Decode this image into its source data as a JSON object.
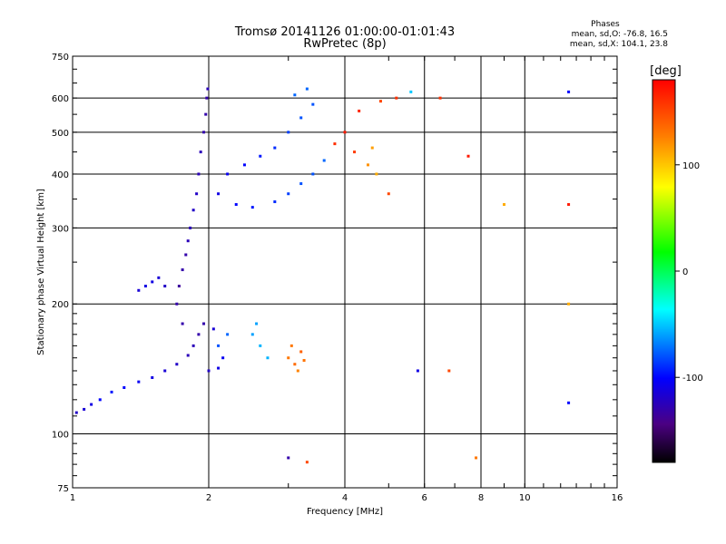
{
  "chart_data": {
    "type": "scatter",
    "title": "Tromsø 20141126 01:00:00-01:01:43",
    "subtitle": "RwPretec (8p)",
    "xlabel": "Frequency [MHz]",
    "ylabel": "Stationary phase Virtual Height [km]",
    "x_scale": "log",
    "y_scale": "log",
    "xlim": [
      1,
      16
    ],
    "ylim": [
      75,
      750
    ],
    "x_ticks": [
      1,
      2,
      4,
      6,
      8,
      10,
      16
    ],
    "y_ticks": [
      75,
      100,
      200,
      300,
      400,
      500,
      600,
      750
    ],
    "x_ticklabels": [
      "1",
      "2",
      "4",
      "6",
      "8",
      "10",
      "16"
    ],
    "y_ticklabels": [
      "75",
      "100",
      "200",
      "300",
      "400",
      "500",
      "600",
      "750"
    ],
    "grid": true,
    "phases": {
      "heading": "Phases",
      "line1": "mean, sd,O: -76.8, 16.5",
      "line2": "mean, sd,X: 104.1, 23.8"
    },
    "colorbar": {
      "label": "[deg]",
      "ticks": [
        100,
        0,
        -100
      ],
      "ticklabels": [
        "100",
        "0",
        "-100"
      ],
      "range": [
        -180,
        180
      ]
    },
    "points": [
      [
        1.02,
        112,
        -120
      ],
      [
        1.06,
        114,
        -115
      ],
      [
        1.1,
        117,
        -110
      ],
      [
        1.15,
        120,
        -100
      ],
      [
        1.22,
        125,
        -95
      ],
      [
        1.3,
        128,
        -100
      ],
      [
        1.4,
        132,
        -105
      ],
      [
        1.5,
        135,
        -110
      ],
      [
        1.6,
        140,
        -115
      ],
      [
        1.7,
        145,
        -120
      ],
      [
        1.8,
        152,
        -125
      ],
      [
        1.85,
        160,
        -125
      ],
      [
        1.9,
        170,
        -130
      ],
      [
        1.95,
        180,
        -130
      ],
      [
        2.0,
        140,
        -120
      ],
      [
        2.1,
        142,
        -110
      ],
      [
        2.15,
        150,
        -105
      ],
      [
        2.05,
        175,
        -115
      ],
      [
        1.75,
        180,
        -130
      ],
      [
        1.7,
        200,
        -130
      ],
      [
        1.72,
        220,
        -135
      ],
      [
        1.75,
        240,
        -130
      ],
      [
        1.78,
        260,
        -130
      ],
      [
        1.8,
        280,
        -125
      ],
      [
        1.82,
        300,
        -125
      ],
      [
        1.85,
        330,
        -120
      ],
      [
        1.88,
        360,
        -120
      ],
      [
        1.9,
        400,
        -125
      ],
      [
        1.92,
        450,
        -125
      ],
      [
        1.95,
        500,
        -130
      ],
      [
        1.97,
        550,
        -130
      ],
      [
        1.98,
        600,
        -130
      ],
      [
        1.99,
        630,
        -125
      ],
      [
        1.6,
        220,
        -120
      ],
      [
        1.55,
        230,
        -115
      ],
      [
        1.5,
        225,
        -110
      ],
      [
        1.45,
        220,
        -110
      ],
      [
        1.4,
        215,
        -115
      ],
      [
        2.1,
        360,
        -110
      ],
      [
        2.3,
        340,
        -100
      ],
      [
        2.5,
        335,
        -95
      ],
      [
        2.8,
        345,
        -90
      ],
      [
        3.0,
        360,
        -85
      ],
      [
        3.2,
        380,
        -80
      ],
      [
        3.4,
        400,
        -80
      ],
      [
        3.6,
        430,
        -75
      ],
      [
        2.2,
        400,
        -105
      ],
      [
        2.4,
        420,
        -100
      ],
      [
        2.6,
        440,
        -95
      ],
      [
        2.8,
        460,
        -90
      ],
      [
        3.0,
        500,
        -85
      ],
      [
        3.2,
        540,
        -80
      ],
      [
        3.4,
        580,
        -80
      ],
      [
        3.1,
        610,
        -75
      ],
      [
        3.3,
        630,
        -75
      ],
      [
        2.5,
        170,
        -60
      ],
      [
        2.6,
        160,
        -55
      ],
      [
        2.7,
        150,
        -55
      ],
      [
        2.55,
        180,
        -60
      ],
      [
        2.2,
        170,
        -75
      ],
      [
        2.1,
        160,
        -80
      ],
      [
        3.0,
        150,
        130
      ],
      [
        3.1,
        145,
        135
      ],
      [
        3.2,
        155,
        140
      ],
      [
        3.05,
        160,
        130
      ],
      [
        3.15,
        140,
        125
      ],
      [
        3.25,
        148,
        132
      ],
      [
        3.8,
        470,
        160
      ],
      [
        4.0,
        500,
        170
      ],
      [
        4.2,
        450,
        155
      ],
      [
        4.5,
        420,
        120
      ],
      [
        4.6,
        460,
        115
      ],
      [
        4.7,
        400,
        110
      ],
      [
        4.3,
        560,
        165
      ],
      [
        4.8,
        590,
        150
      ],
      [
        5.2,
        600,
        160
      ],
      [
        5.6,
        620,
        -50
      ],
      [
        6.5,
        600,
        160
      ],
      [
        7.5,
        440,
        170
      ],
      [
        12.5,
        620,
        -100
      ],
      [
        12.5,
        200,
        110
      ],
      [
        12.5,
        340,
        170
      ],
      [
        12.5,
        118,
        -100
      ],
      [
        5.8,
        140,
        -110
      ],
      [
        6.8,
        140,
        150
      ],
      [
        9.0,
        340,
        110
      ],
      [
        7.8,
        88,
        130
      ],
      [
        3.0,
        88,
        -130
      ],
      [
        3.3,
        86,
        150
      ],
      [
        5.0,
        360,
        150
      ]
    ]
  }
}
